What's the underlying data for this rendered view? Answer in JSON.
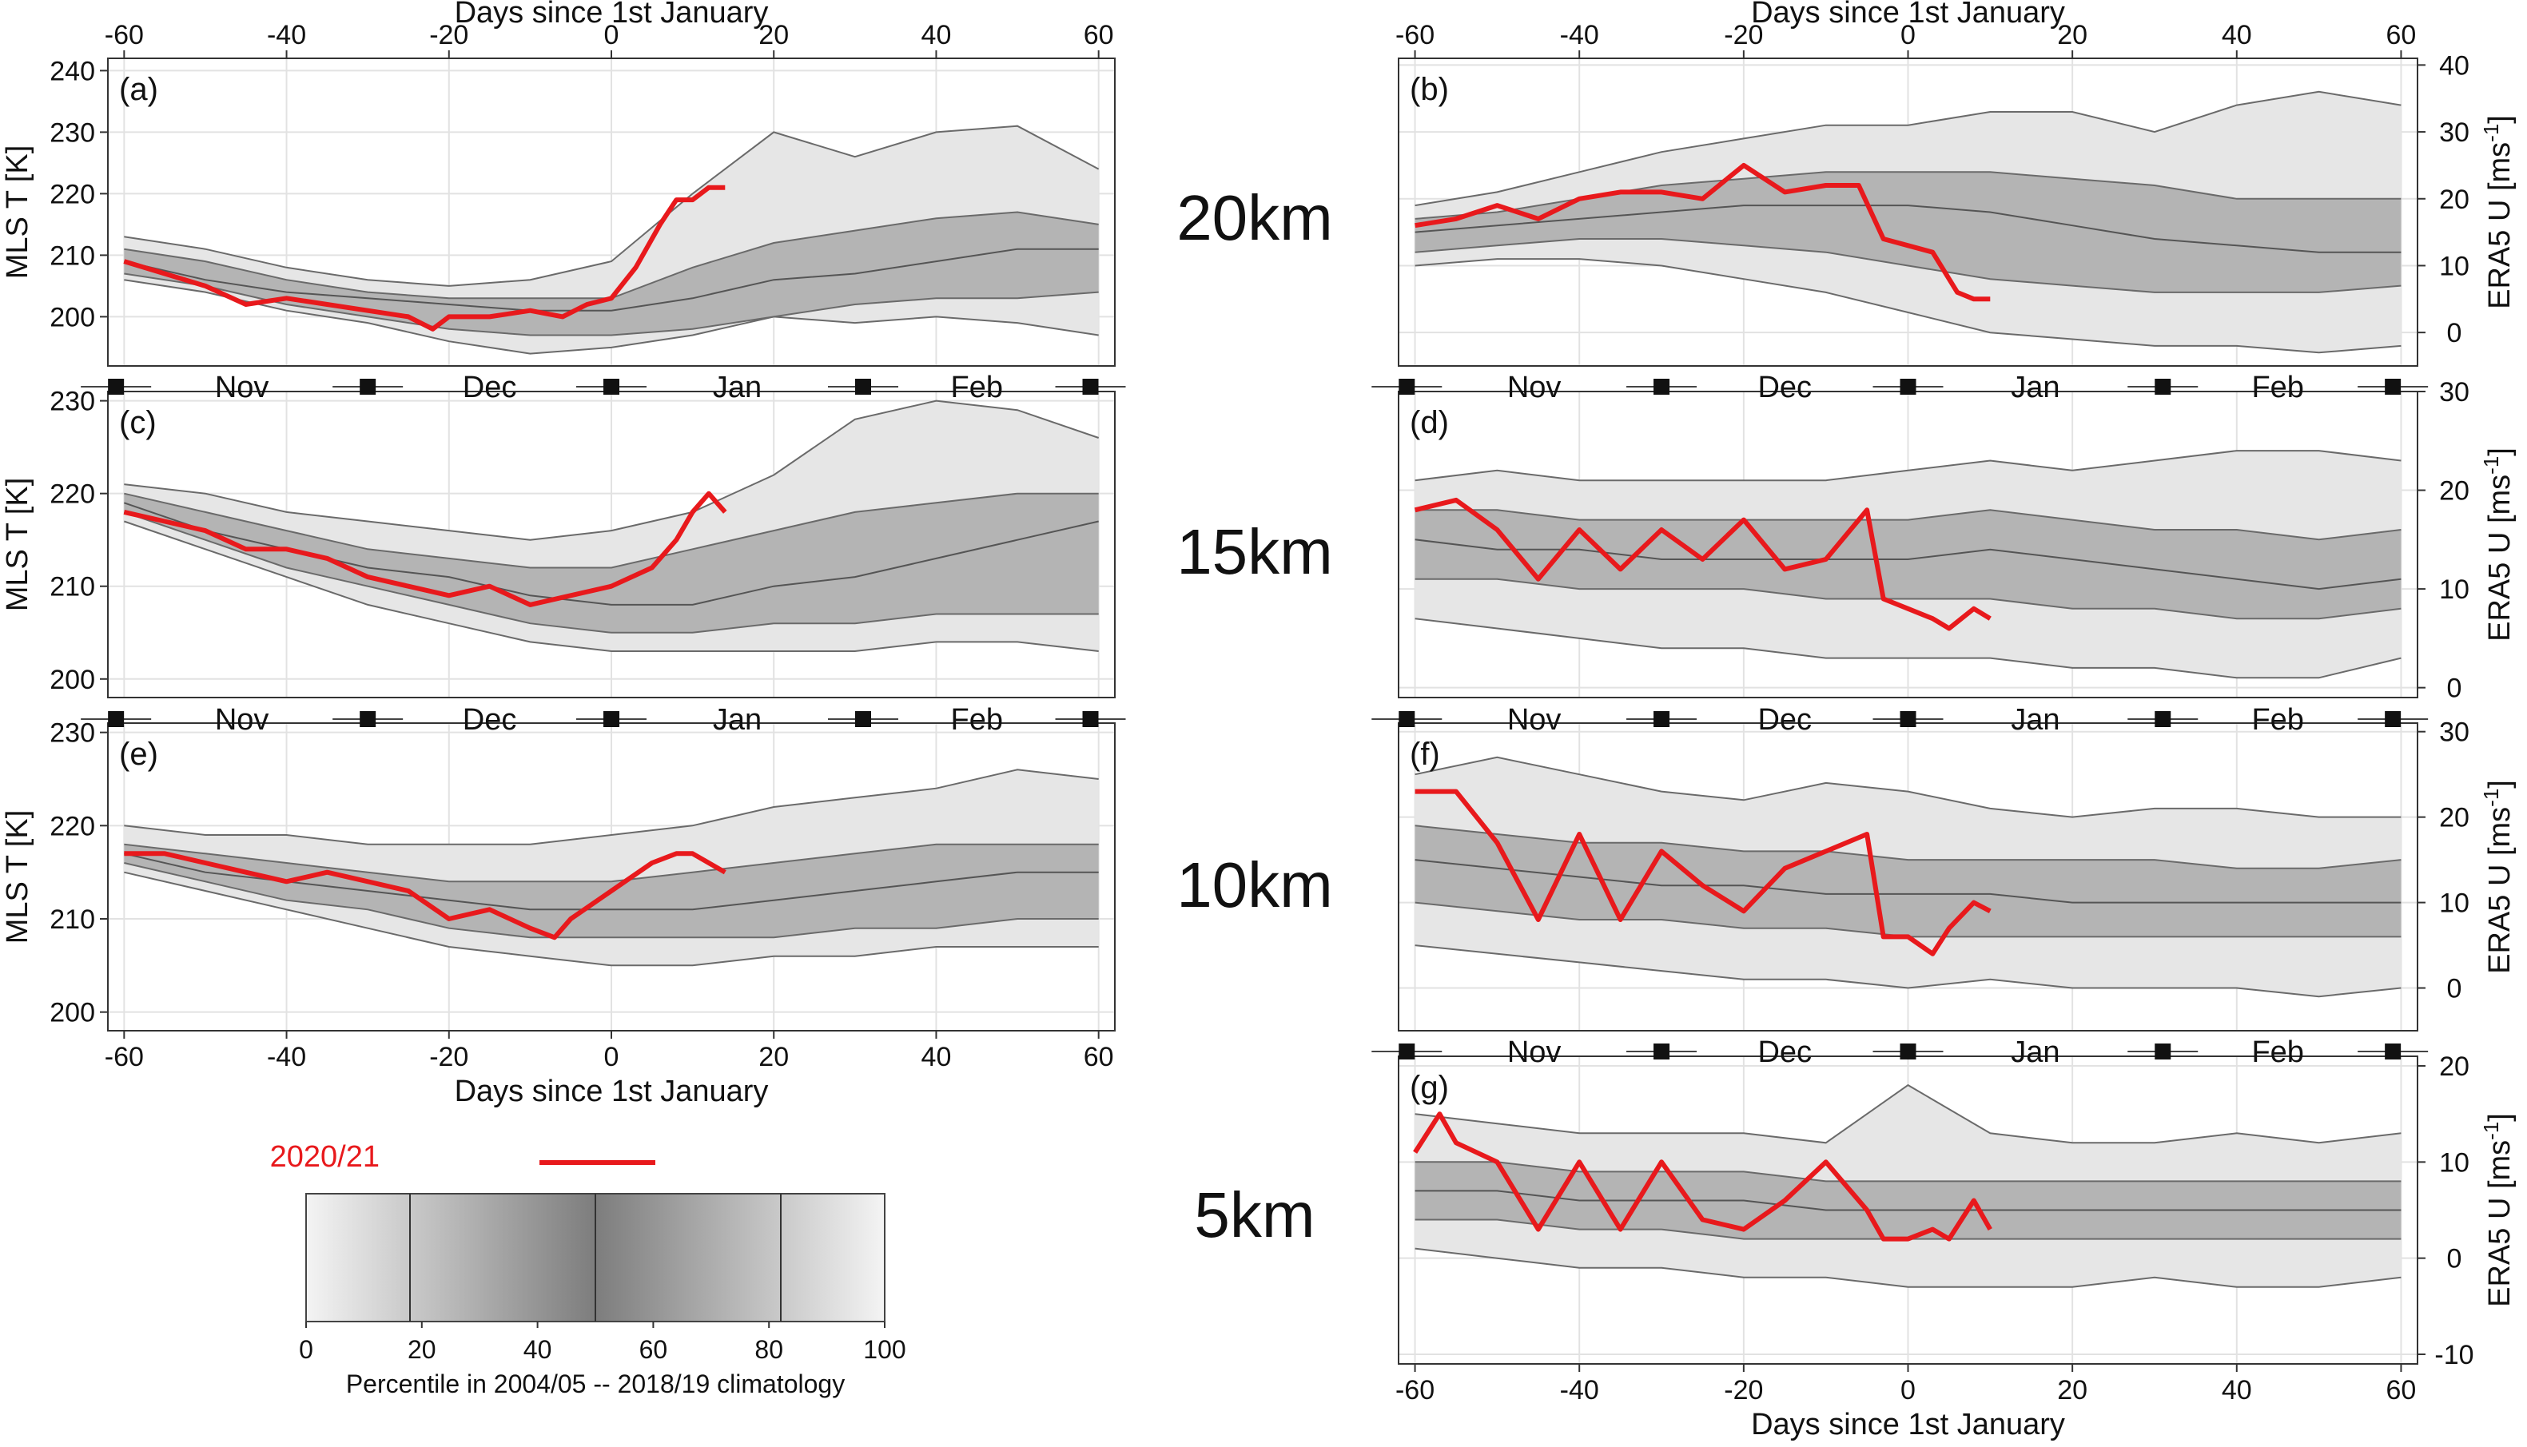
{
  "figure": {
    "x_axis_title": "Days since 1st January",
    "y_axis_title_left": "MLS T [K]",
    "y_axis_title_right_base": "ERA5 U [ms",
    "y_axis_title_right_sup": "-1",
    "y_axis_title_right_end": "]",
    "months": [
      "Nov",
      "Dec",
      "Jan",
      "Feb"
    ],
    "altitude_labels": [
      "20km",
      "15km",
      "10km",
      "5km"
    ]
  },
  "legend": {
    "series_label": "2020/21",
    "series_color": "#e8191c",
    "colorbar_title": "Percentile in 2004/05 -- 2018/19 climatology",
    "colorbar_ticks": [
      "0",
      "20",
      "40",
      "60",
      "80",
      "100"
    ]
  },
  "chart_data": [
    {
      "panel": "(a)",
      "type": "line",
      "variable": "MLS T",
      "altitude": "20km",
      "xlim": [
        -62,
        62
      ],
      "ylim": [
        192,
        242
      ],
      "yticks": [
        200,
        210,
        220,
        230,
        240
      ],
      "xticks": [
        -60,
        -40,
        -20,
        0,
        20,
        40,
        60
      ],
      "climatology": {
        "x": [
          -60,
          -50,
          -40,
          -30,
          -20,
          -10,
          0,
          10,
          20,
          30,
          40,
          50,
          60
        ],
        "p0": [
          206,
          204,
          201,
          199,
          196,
          194,
          195,
          197,
          200,
          199,
          200,
          199,
          197
        ],
        "p18": [
          207,
          205,
          202,
          200,
          198,
          197,
          197,
          198,
          200,
          202,
          203,
          203,
          204
        ],
        "p50": [
          209,
          206,
          204,
          203,
          202,
          201,
          201,
          203,
          206,
          207,
          209,
          211,
          211
        ],
        "p82": [
          211,
          209,
          206,
          204,
          203,
          203,
          203,
          208,
          212,
          214,
          216,
          217,
          215
        ],
        "p100": [
          213,
          211,
          208,
          206,
          205,
          206,
          209,
          220,
          230,
          226,
          230,
          231,
          224
        ]
      },
      "series": [
        {
          "name": "2020/21",
          "x": [
            -60,
            -55,
            -50,
            -45,
            -40,
            -35,
            -30,
            -25,
            -22,
            -20,
            -15,
            -10,
            -6,
            -3,
            0,
            3,
            6,
            8,
            10,
            12,
            14
          ],
          "values": [
            209,
            207,
            205,
            202,
            203,
            202,
            201,
            200,
            198,
            200,
            200,
            201,
            200,
            202,
            203,
            208,
            215,
            219,
            219,
            221,
            221
          ]
        }
      ]
    },
    {
      "panel": "(b)",
      "type": "line",
      "variable": "ERA5 U",
      "altitude": "20km",
      "xlim": [
        -62,
        62
      ],
      "ylim": [
        -5,
        41
      ],
      "yticks": [
        0,
        10,
        20,
        30,
        40
      ],
      "xticks": [
        -60,
        -40,
        -20,
        0,
        20,
        40,
        60
      ],
      "climatology": {
        "x": [
          -60,
          -50,
          -40,
          -30,
          -20,
          -10,
          0,
          10,
          20,
          30,
          40,
          50,
          60
        ],
        "p0": [
          10,
          11,
          11,
          10,
          8,
          6,
          3,
          0,
          -1,
          -2,
          -2,
          -3,
          -2
        ],
        "p18": [
          12,
          13,
          14,
          14,
          13,
          12,
          10,
          8,
          7,
          6,
          6,
          6,
          7
        ],
        "p50": [
          15,
          16,
          17,
          18,
          19,
          19,
          19,
          18,
          16,
          14,
          13,
          12,
          12
        ],
        "p82": [
          17,
          18,
          20,
          22,
          23,
          24,
          24,
          24,
          23,
          22,
          20,
          20,
          20
        ],
        "p100": [
          19,
          21,
          24,
          27,
          29,
          31,
          31,
          33,
          33,
          30,
          34,
          36,
          34
        ]
      },
      "series": [
        {
          "name": "2020/21",
          "x": [
            -60,
            -55,
            -50,
            -45,
            -40,
            -35,
            -30,
            -25,
            -20,
            -15,
            -10,
            -6,
            -3,
            0,
            3,
            6,
            8,
            10
          ],
          "values": [
            16,
            17,
            19,
            17,
            20,
            21,
            21,
            20,
            25,
            21,
            22,
            22,
            14,
            13,
            12,
            6,
            5,
            5
          ]
        }
      ]
    },
    {
      "panel": "(c)",
      "type": "line",
      "variable": "MLS T",
      "altitude": "15km",
      "xlim": [
        -62,
        62
      ],
      "ylim": [
        198,
        231
      ],
      "yticks": [
        200,
        210,
        220,
        230
      ],
      "xticks": [
        -60,
        -40,
        -20,
        0,
        20,
        40,
        60
      ],
      "climatology": {
        "x": [
          -60,
          -50,
          -40,
          -30,
          -20,
          -10,
          0,
          10,
          20,
          30,
          40,
          50,
          60
        ],
        "p0": [
          217,
          214,
          211,
          208,
          206,
          204,
          203,
          203,
          203,
          203,
          204,
          204,
          203
        ],
        "p18": [
          218,
          215,
          212,
          210,
          208,
          206,
          205,
          205,
          206,
          206,
          207,
          207,
          207
        ],
        "p50": [
          219,
          216,
          214,
          212,
          211,
          209,
          208,
          208,
          210,
          211,
          213,
          215,
          217
        ],
        "p82": [
          220,
          218,
          216,
          214,
          213,
          212,
          212,
          214,
          216,
          218,
          219,
          220,
          220
        ],
        "p100": [
          221,
          220,
          218,
          217,
          216,
          215,
          216,
          218,
          222,
          228,
          230,
          229,
          226
        ]
      },
      "series": [
        {
          "name": "2020/21",
          "x": [
            -60,
            -55,
            -50,
            -45,
            -40,
            -35,
            -30,
            -25,
            -20,
            -15,
            -10,
            -5,
            0,
            5,
            8,
            10,
            12,
            14
          ],
          "values": [
            218,
            217,
            216,
            214,
            214,
            213,
            211,
            210,
            209,
            210,
            208,
            209,
            210,
            212,
            215,
            218,
            220,
            218
          ]
        }
      ]
    },
    {
      "panel": "(d)",
      "type": "line",
      "variable": "ERA5 U",
      "altitude": "15km",
      "xlim": [
        -62,
        62
      ],
      "ylim": [
        -1,
        30
      ],
      "yticks": [
        0,
        10,
        20,
        30
      ],
      "xticks": [
        -60,
        -40,
        -20,
        0,
        20,
        40,
        60
      ],
      "climatology": {
        "x": [
          -60,
          -50,
          -40,
          -30,
          -20,
          -10,
          0,
          10,
          20,
          30,
          40,
          50,
          60
        ],
        "p0": [
          7,
          6,
          5,
          4,
          4,
          3,
          3,
          3,
          2,
          2,
          1,
          1,
          3
        ],
        "p18": [
          11,
          11,
          10,
          10,
          10,
          9,
          9,
          9,
          8,
          8,
          7,
          7,
          8
        ],
        "p50": [
          15,
          14,
          14,
          13,
          13,
          13,
          13,
          14,
          13,
          12,
          11,
          10,
          11
        ],
        "p82": [
          18,
          18,
          17,
          17,
          17,
          17,
          17,
          18,
          17,
          16,
          16,
          15,
          16
        ],
        "p100": [
          21,
          22,
          21,
          21,
          21,
          21,
          22,
          23,
          22,
          23,
          24,
          24,
          23
        ]
      },
      "series": [
        {
          "name": "2020/21",
          "x": [
            -60,
            -55,
            -50,
            -45,
            -40,
            -35,
            -30,
            -25,
            -20,
            -15,
            -10,
            -5,
            -3,
            0,
            3,
            5,
            8,
            10
          ],
          "values": [
            18,
            19,
            16,
            11,
            16,
            12,
            16,
            13,
            17,
            12,
            13,
            18,
            9,
            8,
            7,
            6,
            8,
            7
          ]
        }
      ]
    },
    {
      "panel": "(e)",
      "type": "line",
      "variable": "MLS T",
      "altitude": "10km",
      "xlim": [
        -62,
        62
      ],
      "ylim": [
        198,
        231
      ],
      "yticks": [
        200,
        210,
        220,
        230
      ],
      "xticks": [
        -60,
        -40,
        -20,
        0,
        20,
        40,
        60
      ],
      "climatology": {
        "x": [
          -60,
          -50,
          -40,
          -30,
          -20,
          -10,
          0,
          10,
          20,
          30,
          40,
          50,
          60
        ],
        "p0": [
          215,
          213,
          211,
          209,
          207,
          206,
          205,
          205,
          206,
          206,
          207,
          207,
          207
        ],
        "p18": [
          216,
          214,
          212,
          211,
          209,
          208,
          208,
          208,
          208,
          209,
          209,
          210,
          210
        ],
        "p50": [
          217,
          215,
          214,
          213,
          212,
          211,
          211,
          211,
          212,
          213,
          214,
          215,
          215
        ],
        "p82": [
          218,
          217,
          216,
          215,
          214,
          214,
          214,
          215,
          216,
          217,
          218,
          218,
          218
        ],
        "p100": [
          220,
          219,
          219,
          218,
          218,
          218,
          219,
          220,
          222,
          223,
          224,
          226,
          225
        ]
      },
      "series": [
        {
          "name": "2020/21",
          "x": [
            -60,
            -55,
            -50,
            -45,
            -40,
            -35,
            -30,
            -25,
            -20,
            -15,
            -10,
            -7,
            -5,
            0,
            5,
            8,
            10,
            12,
            14
          ],
          "values": [
            217,
            217,
            216,
            215,
            214,
            215,
            214,
            213,
            210,
            211,
            209,
            208,
            210,
            213,
            216,
            217,
            217,
            216,
            215
          ]
        }
      ]
    },
    {
      "panel": "(f)",
      "type": "line",
      "variable": "ERA5 U",
      "altitude": "10km",
      "xlim": [
        -62,
        62
      ],
      "ylim": [
        -5,
        31
      ],
      "yticks": [
        0,
        10,
        20,
        30
      ],
      "xticks": [
        -60,
        -40,
        -20,
        0,
        20,
        40,
        60
      ],
      "climatology": {
        "x": [
          -60,
          -50,
          -40,
          -30,
          -20,
          -10,
          0,
          10,
          20,
          30,
          40,
          50,
          60
        ],
        "p0": [
          5,
          4,
          3,
          2,
          1,
          1,
          0,
          1,
          0,
          0,
          0,
          -1,
          0
        ],
        "p18": [
          10,
          9,
          8,
          8,
          7,
          7,
          6,
          6,
          6,
          6,
          6,
          6,
          6
        ],
        "p50": [
          15,
          14,
          13,
          12,
          12,
          11,
          11,
          11,
          10,
          10,
          10,
          10,
          10
        ],
        "p82": [
          19,
          18,
          17,
          17,
          16,
          16,
          15,
          15,
          15,
          15,
          14,
          14,
          15
        ],
        "p100": [
          25,
          27,
          25,
          23,
          22,
          24,
          23,
          21,
          20,
          21,
          21,
          20,
          20
        ]
      },
      "series": [
        {
          "name": "2020/21",
          "x": [
            -60,
            -55,
            -50,
            -45,
            -40,
            -35,
            -30,
            -25,
            -20,
            -15,
            -10,
            -5,
            -3,
            0,
            3,
            5,
            8,
            10
          ],
          "values": [
            23,
            23,
            17,
            8,
            18,
            8,
            16,
            12,
            9,
            14,
            16,
            18,
            6,
            6,
            4,
            7,
            10,
            9
          ]
        }
      ]
    },
    {
      "panel": "(g)",
      "type": "line",
      "variable": "ERA5 U",
      "altitude": "5km",
      "xlim": [
        -62,
        62
      ],
      "ylim": [
        -11,
        21
      ],
      "yticks": [
        -10,
        0,
        10,
        20
      ],
      "xticks": [
        -60,
        -40,
        -20,
        0,
        20,
        40,
        60
      ],
      "climatology": {
        "x": [
          -60,
          -50,
          -40,
          -30,
          -20,
          -10,
          0,
          10,
          20,
          30,
          40,
          50,
          60
        ],
        "p0": [
          1,
          0,
          -1,
          -1,
          -2,
          -2,
          -3,
          -3,
          -3,
          -2,
          -3,
          -3,
          -2
        ],
        "p18": [
          4,
          4,
          3,
          3,
          2,
          2,
          2,
          2,
          2,
          2,
          2,
          2,
          2
        ],
        "p50": [
          7,
          7,
          6,
          6,
          6,
          5,
          5,
          5,
          5,
          5,
          5,
          5,
          5
        ],
        "p82": [
          10,
          10,
          9,
          9,
          9,
          8,
          8,
          8,
          8,
          8,
          8,
          8,
          8
        ],
        "p100": [
          15,
          14,
          13,
          13,
          13,
          12,
          18,
          13,
          12,
          12,
          13,
          12,
          13
        ]
      },
      "series": [
        {
          "name": "2020/21",
          "x": [
            -60,
            -57,
            -55,
            -50,
            -45,
            -40,
            -35,
            -30,
            -25,
            -20,
            -15,
            -10,
            -5,
            -3,
            0,
            3,
            5,
            8,
            10
          ],
          "values": [
            11,
            15,
            12,
            10,
            3,
            10,
            3,
            10,
            4,
            3,
            6,
            10,
            5,
            2,
            2,
            3,
            2,
            6,
            3
          ]
        }
      ]
    }
  ]
}
